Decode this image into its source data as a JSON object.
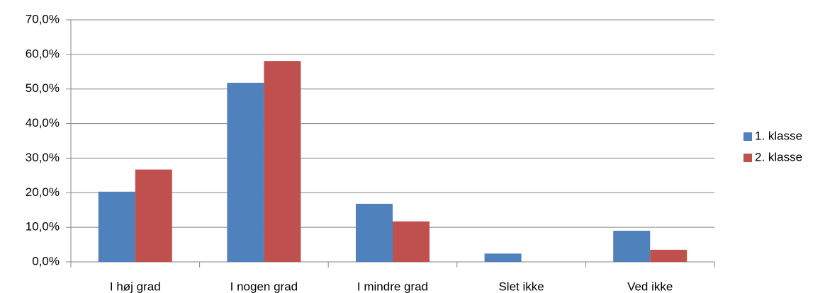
{
  "chart_data": {
    "type": "bar",
    "categories": [
      "I høj grad",
      "I nogen grad",
      "I mindre grad",
      "Slet ikke",
      "Ved ikke"
    ],
    "series": [
      {
        "name": "1. klasse",
        "color": "#4f81bd",
        "values": [
          20.3,
          51.8,
          16.8,
          2.4,
          9.0
        ]
      },
      {
        "name": "2. klasse",
        "color": "#c0504d",
        "values": [
          26.7,
          58.1,
          11.7,
          0,
          3.5
        ]
      }
    ],
    "ylim": [
      0,
      70
    ],
    "yticks": [
      {
        "value": 0,
        "label": "0,0%"
      },
      {
        "value": 10,
        "label": "10,0%"
      },
      {
        "value": 20,
        "label": "20,0%"
      },
      {
        "value": 30,
        "label": "30,0%"
      },
      {
        "value": 40,
        "label": "40,0%"
      },
      {
        "value": 50,
        "label": "50,0%"
      },
      {
        "value": 60,
        "label": "60,0%"
      },
      {
        "value": 70,
        "label": "70,0%"
      }
    ],
    "grid": true,
    "legend": "right"
  }
}
